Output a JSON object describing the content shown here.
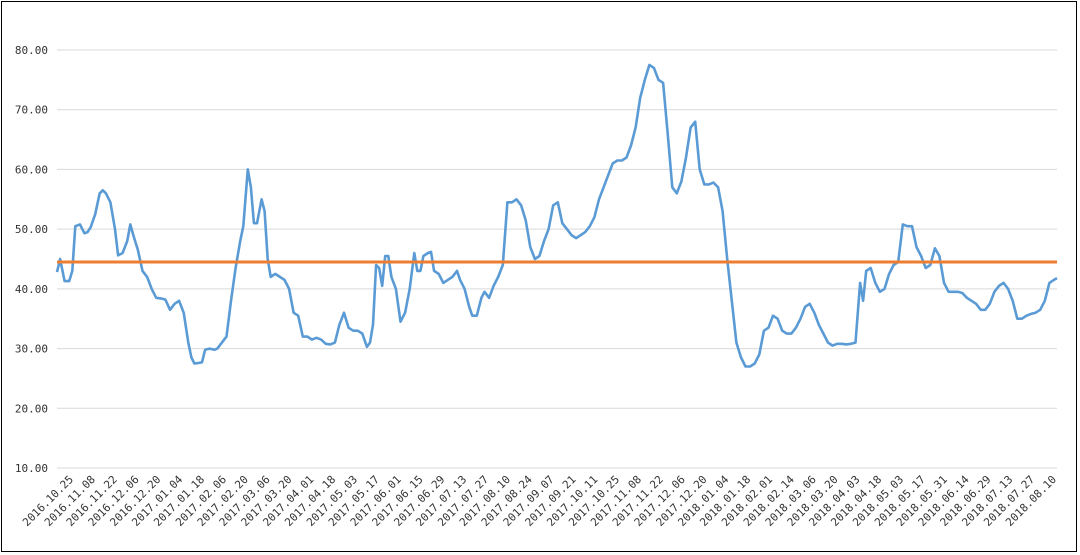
{
  "chart_data": {
    "type": "line",
    "title": "",
    "xlabel": "",
    "ylabel": "",
    "ylim": [
      10,
      80
    ],
    "yticks": [
      "10.00",
      "20.00",
      "30.00",
      "40.00",
      "50.00",
      "60.00",
      "70.00",
      "80.00"
    ],
    "grid": true,
    "legend": "none",
    "categories": [
      "2016.10.25",
      "2016.11.08",
      "2016.11.22",
      "2016.12.06",
      "2016.12.20",
      "2017.01.04",
      "2017.01.18",
      "2017.02.06",
      "2017.02.20",
      "2017.03.06",
      "2017.03.20",
      "2017.04.01",
      "2017.04.18",
      "2017.05.03",
      "2017.05.17",
      "2017.06.01",
      "2017.06.15",
      "2017.06.29",
      "2017.07.13",
      "2017.07.27",
      "2017.08.10",
      "2017.08.24",
      "2017.09.07",
      "2017.09.21",
      "2017.10.11",
      "2017.10.25",
      "2017.11.08",
      "2017.11.22",
      "2017.12.06",
      "2017.12.20",
      "2018.01.04",
      "2018.01.18",
      "2018.02.01",
      "2018.02.14",
      "2018.03.06",
      "2018.03.20",
      "2018.04.03",
      "2018.04.18",
      "2018.05.03",
      "2018.05.17",
      "2018.05.31",
      "2018.06.14",
      "2018.06.29",
      "2018.07.13",
      "2018.07.27",
      "2018.08.10"
    ],
    "series": [
      {
        "color": "#5b9bd5",
        "values": [
          [
            0,
            42.8
          ],
          [
            0.2,
            45.0
          ],
          [
            0.5,
            41.3
          ],
          [
            0.8,
            41.3
          ],
          [
            1.0,
            43.0
          ],
          [
            1.2,
            50.5
          ],
          [
            1.5,
            50.8
          ],
          [
            1.8,
            49.3
          ],
          [
            2.0,
            49.5
          ],
          [
            2.2,
            50.3
          ],
          [
            2.5,
            52.5
          ],
          [
            2.8,
            56.0
          ],
          [
            3.0,
            56.5
          ],
          [
            3.2,
            56.0
          ],
          [
            3.5,
            54.5
          ],
          [
            3.8,
            50.0
          ],
          [
            4.0,
            45.6
          ],
          [
            4.3,
            46.0
          ],
          [
            4.6,
            48.0
          ],
          [
            4.8,
            50.8
          ],
          [
            5.0,
            49.0
          ],
          [
            5.3,
            46.5
          ],
          [
            5.6,
            43.0
          ],
          [
            5.9,
            42.0
          ],
          [
            6.2,
            40.0
          ],
          [
            6.5,
            38.5
          ],
          [
            6.8,
            38.4
          ],
          [
            7.1,
            38.2
          ],
          [
            7.4,
            36.5
          ],
          [
            7.7,
            37.5
          ],
          [
            8.0,
            38.0
          ],
          [
            8.3,
            36.0
          ],
          [
            8.6,
            31.0
          ],
          [
            8.8,
            28.5
          ],
          [
            9.0,
            27.5
          ],
          [
            9.3,
            27.6
          ],
          [
            9.5,
            27.7
          ],
          [
            9.7,
            29.8
          ],
          [
            10.0,
            30.0
          ],
          [
            10.3,
            29.8
          ],
          [
            10.5,
            30.0
          ],
          [
            10.8,
            31.0
          ],
          [
            11.1,
            32.0
          ],
          [
            11.4,
            38.0
          ],
          [
            11.7,
            43.5
          ],
          [
            12.0,
            48.0
          ],
          [
            12.2,
            50.5
          ],
          [
            12.5,
            60.0
          ],
          [
            12.7,
            57.0
          ],
          [
            12.9,
            51.0
          ],
          [
            13.1,
            51.0
          ],
          [
            13.4,
            55.0
          ],
          [
            13.6,
            53.0
          ],
          [
            13.8,
            45.0
          ],
          [
            14.0,
            42.0
          ],
          [
            14.3,
            42.5
          ],
          [
            14.6,
            42.0
          ],
          [
            14.9,
            41.5
          ],
          [
            15.2,
            40.0
          ],
          [
            15.5,
            36.0
          ],
          [
            15.8,
            35.5
          ],
          [
            16.1,
            32.0
          ],
          [
            16.4,
            32.0
          ],
          [
            16.7,
            31.5
          ],
          [
            17.0,
            31.8
          ],
          [
            17.3,
            31.5
          ],
          [
            17.6,
            30.8
          ],
          [
            17.9,
            30.7
          ],
          [
            18.2,
            31.0
          ],
          [
            18.5,
            34.0
          ],
          [
            18.8,
            36.0
          ],
          [
            19.1,
            33.5
          ],
          [
            19.4,
            33.0
          ],
          [
            19.7,
            33.0
          ],
          [
            20.0,
            32.5
          ],
          [
            20.3,
            30.3
          ],
          [
            20.5,
            31.0
          ],
          [
            20.7,
            34.0
          ],
          [
            20.9,
            44.0
          ],
          [
            21.1,
            43.5
          ],
          [
            21.3,
            40.5
          ],
          [
            21.5,
            45.5
          ],
          [
            21.7,
            45.5
          ],
          [
            21.9,
            42.0
          ],
          [
            22.2,
            40.0
          ],
          [
            22.5,
            34.5
          ],
          [
            22.8,
            36.0
          ],
          [
            23.1,
            40.0
          ],
          [
            23.4,
            46.0
          ],
          [
            23.6,
            43.0
          ],
          [
            23.8,
            43.0
          ],
          [
            24.0,
            45.5
          ],
          [
            24.3,
            46.0
          ],
          [
            24.5,
            46.2
          ],
          [
            24.7,
            43.0
          ],
          [
            25.0,
            42.5
          ],
          [
            25.3,
            41.0
          ],
          [
            25.6,
            41.5
          ],
          [
            25.9,
            42.0
          ],
          [
            26.2,
            43.0
          ],
          [
            26.4,
            41.5
          ],
          [
            26.7,
            40.0
          ],
          [
            27.0,
            37.0
          ],
          [
            27.2,
            35.5
          ],
          [
            27.5,
            35.5
          ],
          [
            27.8,
            38.5
          ],
          [
            28.0,
            39.5
          ],
          [
            28.3,
            38.5
          ],
          [
            28.6,
            40.5
          ],
          [
            28.9,
            42.0
          ],
          [
            29.2,
            44.0
          ],
          [
            29.5,
            54.5
          ],
          [
            29.8,
            54.5
          ],
          [
            30.1,
            55.0
          ],
          [
            30.4,
            54.0
          ],
          [
            30.7,
            51.5
          ],
          [
            31.0,
            47.0
          ],
          [
            31.3,
            45.0
          ],
          [
            31.6,
            45.5
          ],
          [
            31.9,
            48.0
          ],
          [
            32.2,
            50.0
          ],
          [
            32.5,
            54.0
          ],
          [
            32.8,
            54.5
          ],
          [
            33.1,
            51.0
          ],
          [
            33.4,
            50.0
          ],
          [
            33.7,
            49.0
          ],
          [
            34.0,
            48.5
          ],
          [
            34.3,
            49.0
          ],
          [
            34.6,
            49.5
          ],
          [
            34.9,
            50.5
          ],
          [
            35.2,
            52.0
          ],
          [
            35.5,
            55.0
          ],
          [
            35.8,
            57.0
          ],
          [
            36.1,
            59.0
          ],
          [
            36.4,
            61.0
          ],
          [
            36.7,
            61.5
          ],
          [
            37.0,
            61.5
          ],
          [
            37.3,
            62.0
          ],
          [
            37.6,
            64.0
          ],
          [
            37.9,
            67.0
          ],
          [
            38.2,
            72.0
          ],
          [
            38.5,
            75.0
          ],
          [
            38.8,
            77.5
          ],
          [
            39.1,
            77.0
          ],
          [
            39.4,
            75.0
          ],
          [
            39.7,
            74.5
          ],
          [
            40.0,
            66.0
          ],
          [
            40.3,
            57.0
          ],
          [
            40.6,
            56.0
          ],
          [
            40.9,
            58.0
          ],
          [
            41.2,
            62.0
          ],
          [
            41.5,
            67.0
          ],
          [
            41.8,
            68.0
          ],
          [
            42.1,
            60.0
          ],
          [
            42.4,
            57.5
          ],
          [
            42.7,
            57.5
          ],
          [
            43.0,
            57.8
          ],
          [
            43.3,
            57.0
          ],
          [
            43.6,
            53.0
          ],
          [
            43.9,
            45.0
          ],
          [
            44.2,
            38.0
          ],
          [
            44.5,
            31.0
          ],
          [
            44.8,
            28.5
          ],
          [
            45.1,
            27.0
          ],
          [
            45.4,
            27.0
          ],
          [
            45.7,
            27.5
          ],
          [
            46.0,
            29.0
          ],
          [
            46.3,
            33.0
          ],
          [
            46.6,
            33.5
          ],
          [
            46.9,
            35.5
          ],
          [
            47.2,
            35.0
          ],
          [
            47.5,
            33.0
          ],
          [
            47.8,
            32.5
          ],
          [
            48.1,
            32.5
          ],
          [
            48.4,
            33.5
          ],
          [
            48.7,
            35.0
          ],
          [
            49.0,
            37.0
          ],
          [
            49.3,
            37.5
          ],
          [
            49.6,
            36.0
          ],
          [
            49.9,
            34.0
          ],
          [
            50.2,
            32.5
          ],
          [
            50.5,
            31.0
          ],
          [
            50.8,
            30.5
          ],
          [
            51.1,
            30.8
          ],
          [
            51.4,
            30.8
          ],
          [
            51.7,
            30.7
          ],
          [
            52.0,
            30.8
          ],
          [
            52.3,
            31.0
          ],
          [
            52.6,
            41.0
          ],
          [
            52.8,
            38.0
          ],
          [
            53.0,
            43.0
          ],
          [
            53.3,
            43.5
          ],
          [
            53.6,
            41.0
          ],
          [
            53.9,
            39.5
          ],
          [
            54.2,
            40.0
          ],
          [
            54.5,
            42.5
          ],
          [
            54.8,
            44.0
          ],
          [
            55.1,
            44.5
          ],
          [
            55.4,
            50.8
          ],
          [
            55.7,
            50.5
          ],
          [
            56.0,
            50.5
          ],
          [
            56.3,
            47.0
          ],
          [
            56.6,
            45.5
          ],
          [
            56.9,
            43.5
          ],
          [
            57.2,
            44.0
          ],
          [
            57.5,
            46.8
          ],
          [
            57.8,
            45.5
          ],
          [
            58.1,
            41.0
          ],
          [
            58.4,
            39.5
          ],
          [
            58.7,
            39.5
          ],
          [
            59.0,
            39.5
          ],
          [
            59.3,
            39.3
          ],
          [
            59.6,
            38.5
          ],
          [
            59.9,
            38.0
          ],
          [
            60.2,
            37.5
          ],
          [
            60.5,
            36.5
          ],
          [
            60.8,
            36.5
          ],
          [
            61.1,
            37.5
          ],
          [
            61.4,
            39.5
          ],
          [
            61.7,
            40.5
          ],
          [
            62.0,
            41.0
          ],
          [
            62.3,
            40.0
          ],
          [
            62.6,
            38.0
          ],
          [
            62.9,
            35.0
          ],
          [
            63.2,
            35.0
          ],
          [
            63.5,
            35.5
          ],
          [
            63.8,
            35.8
          ],
          [
            64.1,
            36.0
          ],
          [
            64.4,
            36.5
          ],
          [
            64.7,
            38.0
          ],
          [
            65.0,
            41.0
          ],
          [
            65.3,
            41.5
          ],
          [
            65.5,
            41.8
          ]
        ]
      },
      {
        "color": "#ed7d31",
        "values": [
          [
            0,
            44.5
          ],
          [
            65.5,
            44.5
          ]
        ]
      }
    ]
  }
}
